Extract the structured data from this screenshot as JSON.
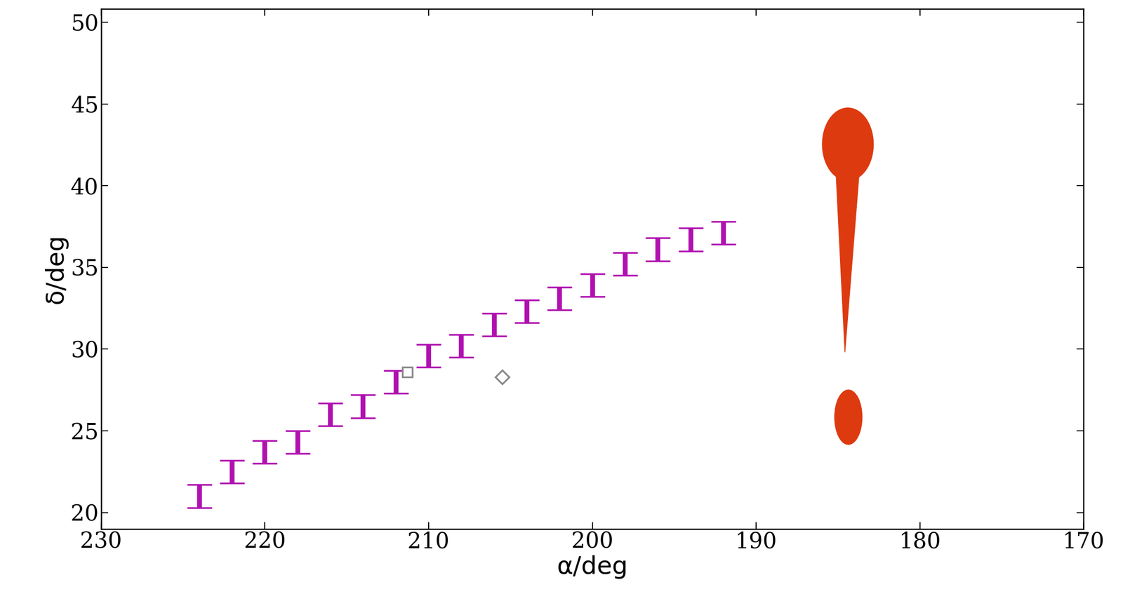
{
  "chart_data": {
    "type": "errorbar",
    "x_label": "α/deg",
    "y_label": "δ/deg",
    "xlim": [
      230,
      170
    ],
    "ylim": [
      19,
      50.8
    ],
    "xticks": [
      230,
      220,
      210,
      200,
      190,
      180,
      170
    ],
    "yticks": [
      20,
      25,
      30,
      35,
      40,
      45,
      50
    ],
    "x": [
      224,
      222,
      220,
      218,
      216,
      214,
      212,
      210,
      208,
      206,
      204,
      202,
      200,
      198,
      196,
      194,
      192
    ],
    "values": [
      21.0,
      22.5,
      23.7,
      24.3,
      26.0,
      26.5,
      28.0,
      29.6,
      30.2,
      31.5,
      32.3,
      33.1,
      33.9,
      35.2,
      36.1,
      36.7,
      37.1
    ],
    "errors": [
      0.7,
      0.7,
      0.7,
      0.7,
      0.7,
      0.7,
      0.7,
      0.7,
      0.7,
      0.7,
      0.7,
      0.7,
      0.7,
      0.7,
      0.7,
      0.7,
      0.7
    ],
    "color": "#b010b0",
    "points": [
      {
        "x": 211.3,
        "y": 28.6,
        "marker": "square"
      },
      {
        "x": 205.5,
        "y": 28.3,
        "marker": "diamond"
      }
    ]
  }
}
